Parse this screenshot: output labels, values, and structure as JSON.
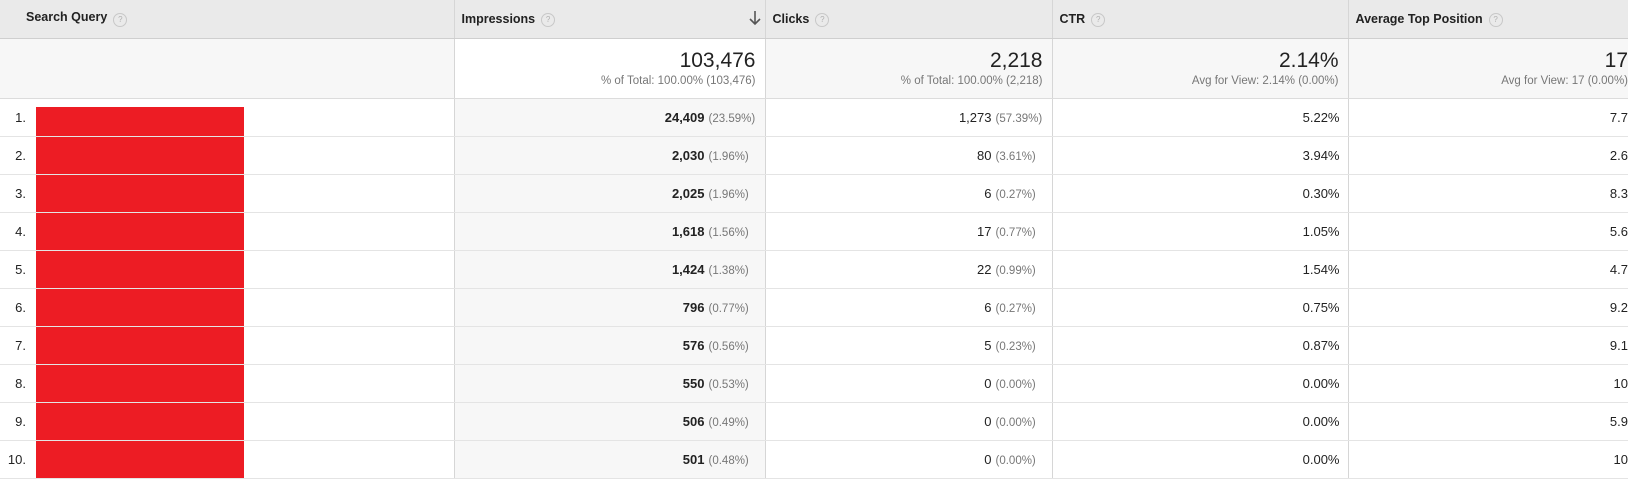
{
  "columns": [
    {
      "label": "Search Query"
    },
    {
      "label": "Impressions"
    },
    {
      "label": "Clicks"
    },
    {
      "label": "CTR"
    },
    {
      "label": "Average Top Position"
    }
  ],
  "help_glyph": "?",
  "sort": {
    "column": "Impressions",
    "direction": "descending"
  },
  "totals": {
    "impressions": {
      "value": "103,476",
      "sub": "% of Total: 100.00% (103,476)"
    },
    "clicks": {
      "value": "2,218",
      "sub": "% of Total: 100.00% (2,218)"
    },
    "ctr": {
      "value": "2.14%",
      "sub": "Avg for View: 2.14% (0.00%)"
    },
    "position": {
      "value": "17",
      "sub": "Avg for View: 17 (0.00%)"
    }
  },
  "rows": [
    {
      "num": "1.",
      "impressions": "24,409",
      "imp_pct": "(23.59%)",
      "clicks": "1,273",
      "clicks_pct": "(57.39%)",
      "ctr": "5.22%",
      "position": "7.7"
    },
    {
      "num": "2.",
      "impressions": "2,030",
      "imp_pct": "(1.96%)",
      "clicks": "80",
      "clicks_pct": "(3.61%)",
      "ctr": "3.94%",
      "position": "2.6"
    },
    {
      "num": "3.",
      "impressions": "2,025",
      "imp_pct": "(1.96%)",
      "clicks": "6",
      "clicks_pct": "(0.27%)",
      "ctr": "0.30%",
      "position": "8.3"
    },
    {
      "num": "4.",
      "impressions": "1,618",
      "imp_pct": "(1.56%)",
      "clicks": "17",
      "clicks_pct": "(0.77%)",
      "ctr": "1.05%",
      "position": "5.6"
    },
    {
      "num": "5.",
      "impressions": "1,424",
      "imp_pct": "(1.38%)",
      "clicks": "22",
      "clicks_pct": "(0.99%)",
      "ctr": "1.54%",
      "position": "4.7"
    },
    {
      "num": "6.",
      "impressions": "796",
      "imp_pct": "(0.77%)",
      "clicks": "6",
      "clicks_pct": "(0.27%)",
      "ctr": "0.75%",
      "position": "9.2"
    },
    {
      "num": "7.",
      "impressions": "576",
      "imp_pct": "(0.56%)",
      "clicks": "5",
      "clicks_pct": "(0.23%)",
      "ctr": "0.87%",
      "position": "9.1"
    },
    {
      "num": "8.",
      "impressions": "550",
      "imp_pct": "(0.53%)",
      "clicks": "0",
      "clicks_pct": "(0.00%)",
      "ctr": "0.00%",
      "position": "10"
    },
    {
      "num": "9.",
      "impressions": "506",
      "imp_pct": "(0.49%)",
      "clicks": "0",
      "clicks_pct": "(0.00%)",
      "ctr": "0.00%",
      "position": "5.9"
    },
    {
      "num": "10.",
      "impressions": "501",
      "imp_pct": "(0.48%)",
      "clicks": "0",
      "clicks_pct": "(0.00%)",
      "ctr": "0.00%",
      "position": "10"
    }
  ],
  "colors": {
    "redaction": "#ed1c24",
    "header_bg": "#eaeaea",
    "totals_bg": "#f7f7f7"
  }
}
